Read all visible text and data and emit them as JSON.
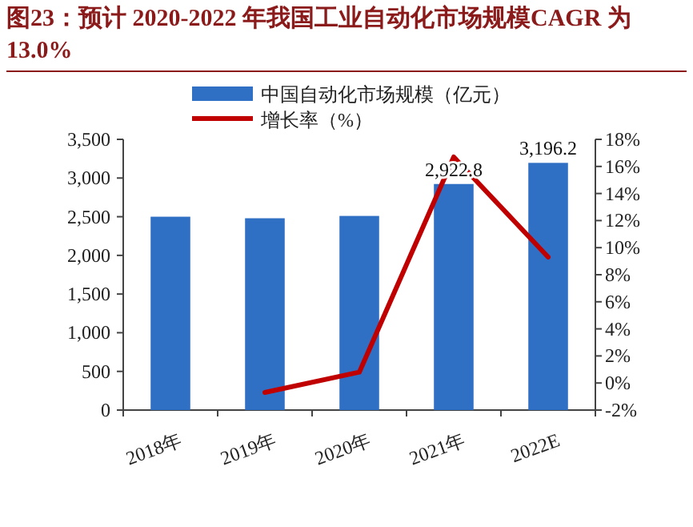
{
  "chart_data": {
    "type": "bar",
    "title": "图23：预计 2020-2022 年我国工业自动化市场规模CAGR 为 13.0%",
    "categories": [
      "2018年",
      "2019年",
      "2020年",
      "2021年",
      "2022E"
    ],
    "series": [
      {
        "name": "中国自动化市场规模（亿元）",
        "color": "#3070c4",
        "values": [
          2500,
          2480,
          2510,
          2922.8,
          3196.2
        ],
        "value_labels": [
          null,
          null,
          null,
          "2,922.8",
          "3,196.2"
        ]
      },
      {
        "name": "增长率（%）",
        "type": "line",
        "axis": "y2",
        "color": "#c00000",
        "values": [
          null,
          -0.7,
          0.8,
          16.7,
          9.3
        ]
      }
    ],
    "ylim": [
      0,
      3500
    ],
    "yticks": [
      {
        "value": 0,
        "label": "0"
      },
      {
        "value": 500,
        "label": "500"
      },
      {
        "value": 1000,
        "label": "1,000"
      },
      {
        "value": 1500,
        "label": "1,500"
      },
      {
        "value": 2000,
        "label": "2,000"
      },
      {
        "value": 2500,
        "label": "2,500"
      },
      {
        "value": 3000,
        "label": "3,000"
      },
      {
        "value": 3500,
        "label": "3,500"
      }
    ],
    "y2lim": [
      -2,
      18
    ],
    "y2ticks": [
      {
        "value": -2,
        "label": "-2%"
      },
      {
        "value": 0,
        "label": "0%"
      },
      {
        "value": 2,
        "label": "2%"
      },
      {
        "value": 4,
        "label": "4%"
      },
      {
        "value": 6,
        "label": "6%"
      },
      {
        "value": 8,
        "label": "8%"
      },
      {
        "value": 10,
        "label": "10%"
      },
      {
        "value": 12,
        "label": "12%"
      },
      {
        "value": 14,
        "label": "14%"
      },
      {
        "value": 16,
        "label": "16%"
      },
      {
        "value": 18,
        "label": "18%"
      }
    ],
    "legend": "top"
  }
}
